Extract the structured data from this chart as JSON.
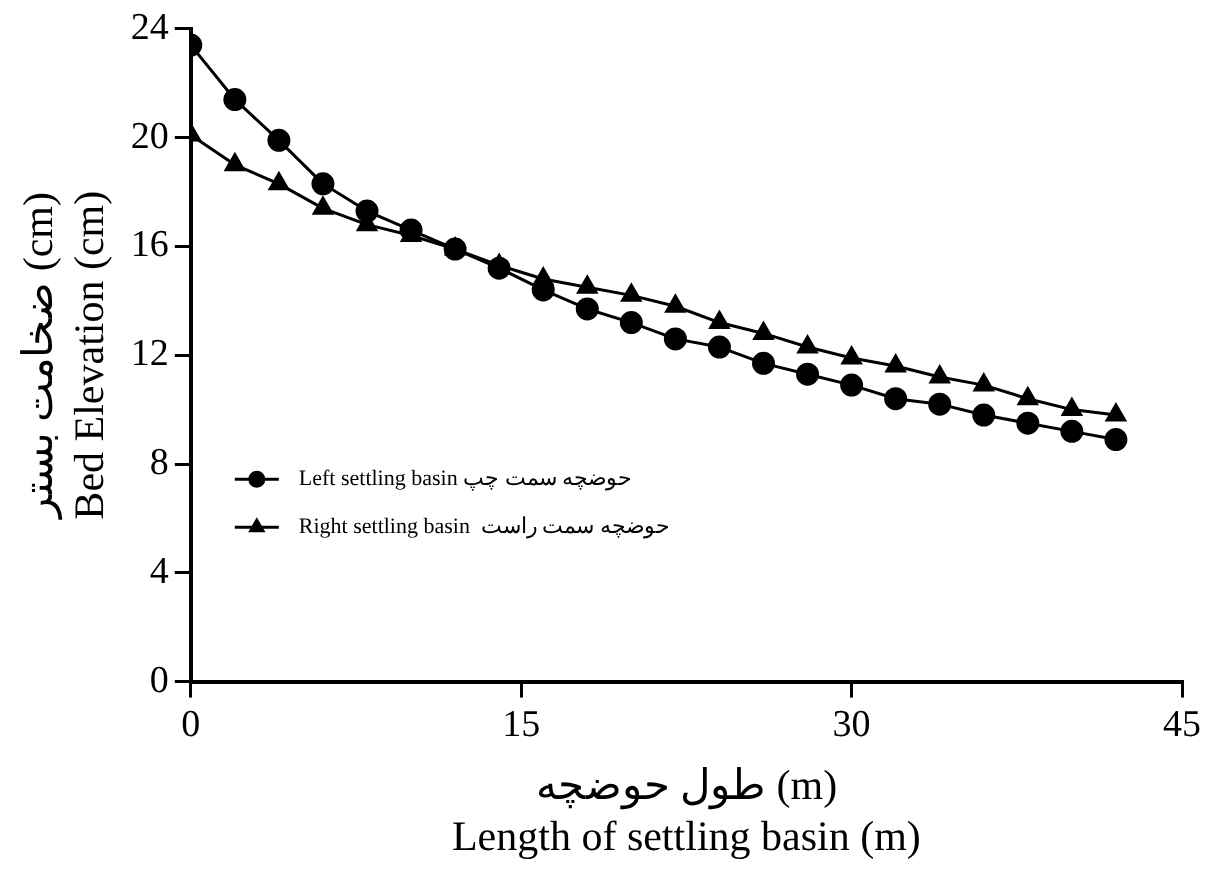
{
  "chart_data": {
    "type": "line",
    "xlabel": "طول حوضچه (m)\nLength of settling basin (m)",
    "ylabel": "ضخامت بستر (cm)\nBed Elevation (cm)",
    "x": [
      0,
      2,
      4,
      6,
      8,
      10,
      12,
      14,
      16,
      18,
      20,
      22,
      24,
      26,
      28,
      30,
      32,
      34,
      36,
      38,
      40,
      42
    ],
    "series": [
      {
        "name": "Left settling basin حوضچه سمت چپ",
        "color": "#000000",
        "marker": "circle",
        "values": [
          23.4,
          21.4,
          19.9,
          18.3,
          17.3,
          16.6,
          15.9,
          15.2,
          14.4,
          13.7,
          13.2,
          12.6,
          12.3,
          11.7,
          11.3,
          10.9,
          10.4,
          10.2,
          9.8,
          9.5,
          9.2,
          8.9
        ]
      },
      {
        "name": "Right settling basin  حوضچه سمت راست",
        "color": "#000000",
        "marker": "triangle",
        "values": [
          20.1,
          19.0,
          18.3,
          17.4,
          16.8,
          16.4,
          15.9,
          15.3,
          14.8,
          14.5,
          14.2,
          13.8,
          13.2,
          12.8,
          12.3,
          11.9,
          11.6,
          11.2,
          10.9,
          10.4,
          10.0,
          9.8
        ]
      }
    ],
    "xlim": [
      0,
      45
    ],
    "xticks": [
      0,
      15,
      30,
      45
    ],
    "ylim": [
      0,
      24
    ],
    "yticks": [
      0,
      4,
      8,
      12,
      16,
      20,
      24
    ],
    "grid": false,
    "legend": "left",
    "line_style": "solid"
  }
}
